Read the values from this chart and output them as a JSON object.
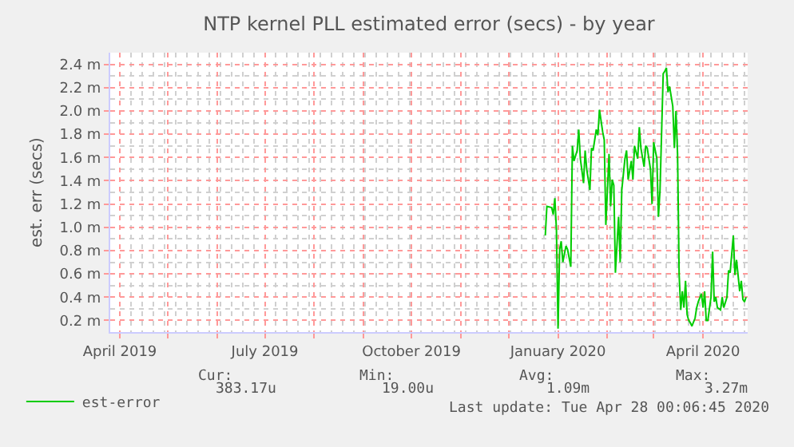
{
  "chart_data": {
    "type": "line",
    "title": "NTP kernel PLL estimated error (secs) - by year",
    "ylabel": "est. err (secs)",
    "x": [
      "2019-12-24",
      "2019-12-25",
      "2019-12-28",
      "2019-12-29",
      "2019-12-30",
      "2019-12-31",
      "2020-01-01",
      "2020-01-02",
      "2020-01-03",
      "2020-01-04",
      "2020-01-06",
      "2020-01-07",
      "2020-01-09",
      "2020-01-10",
      "2020-01-11",
      "2020-01-13",
      "2020-01-14",
      "2020-01-15",
      "2020-01-17",
      "2020-01-18",
      "2020-01-19",
      "2020-01-21",
      "2020-01-22",
      "2020-01-23",
      "2020-01-25",
      "2020-01-26",
      "2020-01-27",
      "2020-01-29",
      "2020-01-30",
      "2020-01-31",
      "2020-02-02",
      "2020-02-03",
      "2020-02-04",
      "2020-02-05",
      "2020-02-06",
      "2020-02-08",
      "2020-02-09",
      "2020-02-10",
      "2020-02-12",
      "2020-02-13",
      "2020-02-14",
      "2020-02-16",
      "2020-02-17",
      "2020-02-18",
      "2020-02-20",
      "2020-02-21",
      "2020-02-22",
      "2020-02-24",
      "2020-02-25",
      "2020-02-26",
      "2020-02-28",
      "2020-02-29",
      "2020-03-01",
      "2020-03-03",
      "2020-03-04",
      "2020-03-05",
      "2020-03-07",
      "2020-03-08",
      "2020-03-09",
      "2020-03-10",
      "2020-03-11",
      "2020-03-13",
      "2020-03-14",
      "2020-03-15",
      "2020-03-16",
      "2020-03-17",
      "2020-03-18",
      "2020-03-19",
      "2020-03-20",
      "2020-03-21",
      "2020-03-22",
      "2020-03-23",
      "2020-03-24",
      "2020-03-25",
      "2020-03-27",
      "2020-03-28",
      "2020-03-29",
      "2020-03-31",
      "2020-04-01",
      "2020-04-02",
      "2020-04-03",
      "2020-04-04",
      "2020-04-06",
      "2020-04-07",
      "2020-04-08",
      "2020-04-09",
      "2020-04-10",
      "2020-04-12",
      "2020-04-13",
      "2020-04-14",
      "2020-04-16",
      "2020-04-17",
      "2020-04-18",
      "2020-04-20",
      "2020-04-21",
      "2020-04-22",
      "2020-04-24",
      "2020-04-25",
      "2020-04-26",
      "2020-04-27",
      "2020-04-28"
    ],
    "series": [
      {
        "name": "est-error",
        "color": "#00cc00",
        "values": [
          0.93,
          1.18,
          1.17,
          1.11,
          1.25,
          0.98,
          0.13,
          0.81,
          0.88,
          0.7,
          0.84,
          0.81,
          0.66,
          1.7,
          1.57,
          1.66,
          1.84,
          1.59,
          1.38,
          1.66,
          1.5,
          1.32,
          1.68,
          1.66,
          1.84,
          1.79,
          2.01,
          1.82,
          1.75,
          1.02,
          1.63,
          1.18,
          1.41,
          1.36,
          0.61,
          1.09,
          0.7,
          1.32,
          1.59,
          1.66,
          1.41,
          1.57,
          1.41,
          1.7,
          1.59,
          1.86,
          1.68,
          1.52,
          1.7,
          1.68,
          1.5,
          1.2,
          1.73,
          1.59,
          1.09,
          1.32,
          2.32,
          2.34,
          2.37,
          2.16,
          2.21,
          2.04,
          1.68,
          2.0,
          1.63,
          0.59,
          0.29,
          0.45,
          0.31,
          0.54,
          0.25,
          0.2,
          0.18,
          0.15,
          0.22,
          0.31,
          0.36,
          0.43,
          0.31,
          0.45,
          0.2,
          0.2,
          0.4,
          0.79,
          0.36,
          0.4,
          0.31,
          0.29,
          0.4,
          0.31,
          0.4,
          0.63,
          0.61,
          0.93,
          0.59,
          0.72,
          0.45,
          0.54,
          0.38,
          0.36,
          0.4
        ]
      }
    ],
    "xlim": [
      "2019-03-26",
      "2020-04-29"
    ],
    "xticks": [
      {
        "value": "2019-04-01",
        "label": "April 2019"
      },
      {
        "value": "2019-05-01",
        "label": null
      },
      {
        "value": "2019-06-01",
        "label": null
      },
      {
        "value": "2019-07-01",
        "label": "July 2019"
      },
      {
        "value": "2019-08-01",
        "label": null
      },
      {
        "value": "2019-09-01",
        "label": null
      },
      {
        "value": "2019-10-01",
        "label": "October 2019"
      },
      {
        "value": "2019-11-01",
        "label": null
      },
      {
        "value": "2019-12-01",
        "label": null
      },
      {
        "value": "2020-01-01",
        "label": "January 2020"
      },
      {
        "value": "2020-02-01",
        "label": null
      },
      {
        "value": "2020-03-01",
        "label": null
      },
      {
        "value": "2020-04-01",
        "label": "April 2020"
      }
    ],
    "ylim": [
      0.1,
      2.5
    ],
    "yticks": [
      {
        "value": 0.2,
        "label": "0.2 m"
      },
      {
        "value": 0.4,
        "label": "0.4 m"
      },
      {
        "value": 0.6,
        "label": "0.6 m"
      },
      {
        "value": 0.8,
        "label": "0.8 m"
      },
      {
        "value": 1.0,
        "label": "1.0 m"
      },
      {
        "value": 1.2,
        "label": "1.2 m"
      },
      {
        "value": 1.4,
        "label": "1.4 m"
      },
      {
        "value": 1.6,
        "label": "1.6 m"
      },
      {
        "value": 1.8,
        "label": "1.8 m"
      },
      {
        "value": 2.0,
        "label": "2.0 m"
      },
      {
        "value": 2.2,
        "label": "2.2 m"
      },
      {
        "value": 2.4,
        "label": "2.4 m"
      }
    ],
    "grid": true,
    "legend": "bottom left",
    "marker": "none",
    "line_style": "solid",
    "annotations": [
      "Cur:",
      "Min:",
      "Avg:",
      "Max:",
      "383.17u",
      "19.00u",
      "1.09m",
      "3.27m",
      "Last update: Tue Apr 28 00:06:45 2020"
    ]
  }
}
